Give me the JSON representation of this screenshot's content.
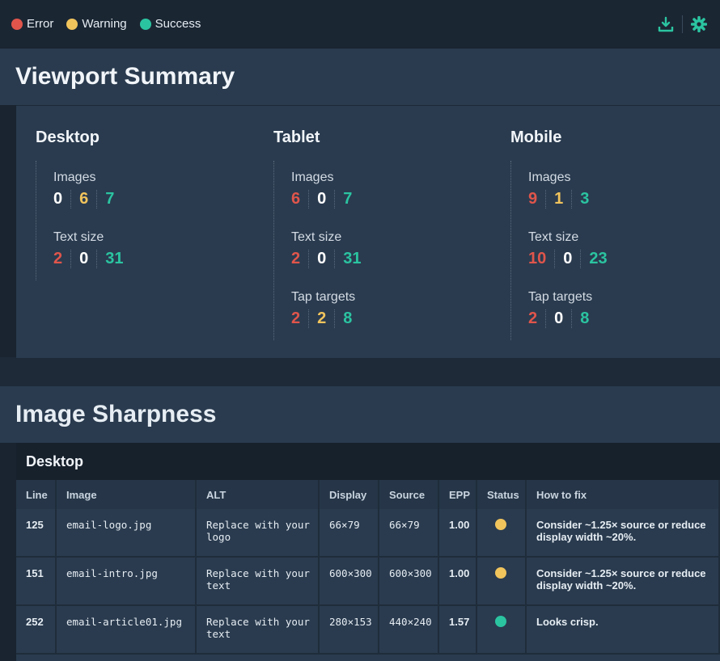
{
  "legend": [
    {
      "label": "Error",
      "color": "#e0554b"
    },
    {
      "label": "Warning",
      "color": "#f1c45c"
    },
    {
      "label": "Success",
      "color": "#2bc4a1"
    }
  ],
  "toolbar": {
    "download_icon": "download-icon",
    "settings_icon": "gear-icon"
  },
  "viewport": {
    "title": "Viewport Summary",
    "devices": [
      {
        "name": "Desktop",
        "metrics": [
          {
            "label": "Images",
            "counts": [
              "0",
              "6",
              "7"
            ]
          },
          {
            "label": "Text size",
            "counts": [
              "2",
              "0",
              "31"
            ]
          }
        ]
      },
      {
        "name": "Tablet",
        "metrics": [
          {
            "label": "Images",
            "counts": [
              "6",
              "0",
              "7"
            ]
          },
          {
            "label": "Text size",
            "counts": [
              "2",
              "0",
              "31"
            ]
          },
          {
            "label": "Tap targets",
            "counts": [
              "2",
              "2",
              "8"
            ]
          }
        ]
      },
      {
        "name": "Mobile",
        "metrics": [
          {
            "label": "Images",
            "counts": [
              "9",
              "1",
              "3"
            ]
          },
          {
            "label": "Text size",
            "counts": [
              "10",
              "0",
              "23"
            ]
          },
          {
            "label": "Tap targets",
            "counts": [
              "2",
              "0",
              "8"
            ]
          }
        ]
      }
    ]
  },
  "sharpness": {
    "title": "Image Sharpness",
    "subtitle": "Desktop",
    "columns": [
      "Line",
      "Image",
      "ALT",
      "Display",
      "Source",
      "EPP",
      "Status",
      "How to fix"
    ],
    "rows": [
      {
        "line": "125",
        "image": "email-logo.jpg",
        "alt": "Replace with your logo",
        "display": "66×79",
        "source": "66×79",
        "epp": "1.00",
        "status": "warning",
        "fix": "Consider ~1.25× source or reduce display width ~20%."
      },
      {
        "line": "151",
        "image": "email-intro.jpg",
        "alt": "Replace with your text",
        "display": "600×300",
        "source": "600×300",
        "epp": "1.00",
        "status": "warning",
        "fix": "Consider ~1.25× source or reduce display width ~20%."
      },
      {
        "line": "252",
        "image": "email-article01.jpg",
        "alt": "Replace with your text",
        "display": "280×153",
        "source": "440×240",
        "epp": "1.57",
        "status": "success",
        "fix": "Looks crisp."
      }
    ]
  }
}
